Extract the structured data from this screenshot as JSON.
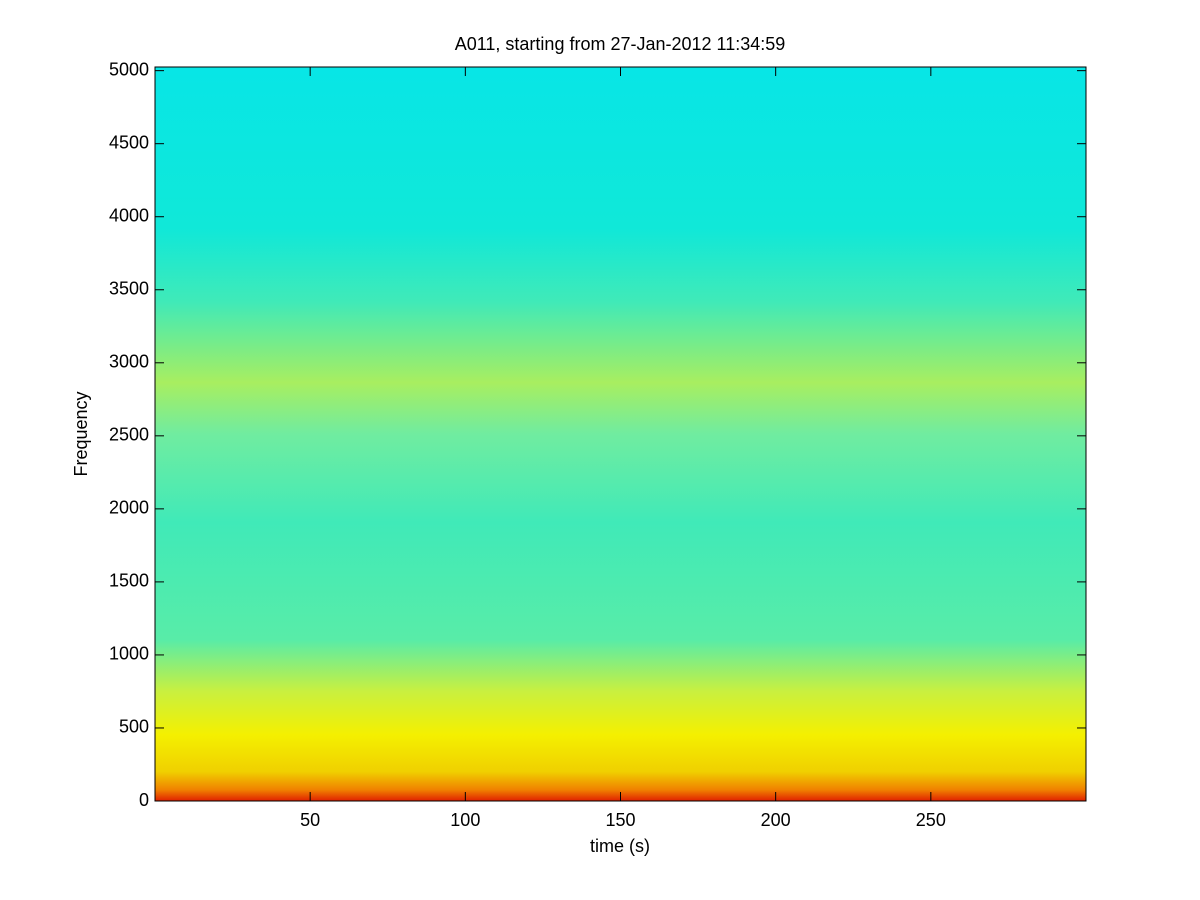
{
  "chart_data": {
    "type": "spectrogram",
    "title": "A011, starting from 27-Jan-2012 11:34:59",
    "xlabel": "time (s)",
    "ylabel": "Frequency",
    "xlim": [
      0,
      300
    ],
    "xticks": [
      50,
      100,
      150,
      200,
      250
    ],
    "ylim": [
      0,
      5025
    ],
    "yticks": [
      0,
      500,
      1000,
      1500,
      2000,
      2500,
      3000,
      3500,
      4000,
      4500,
      5000
    ]
  }
}
